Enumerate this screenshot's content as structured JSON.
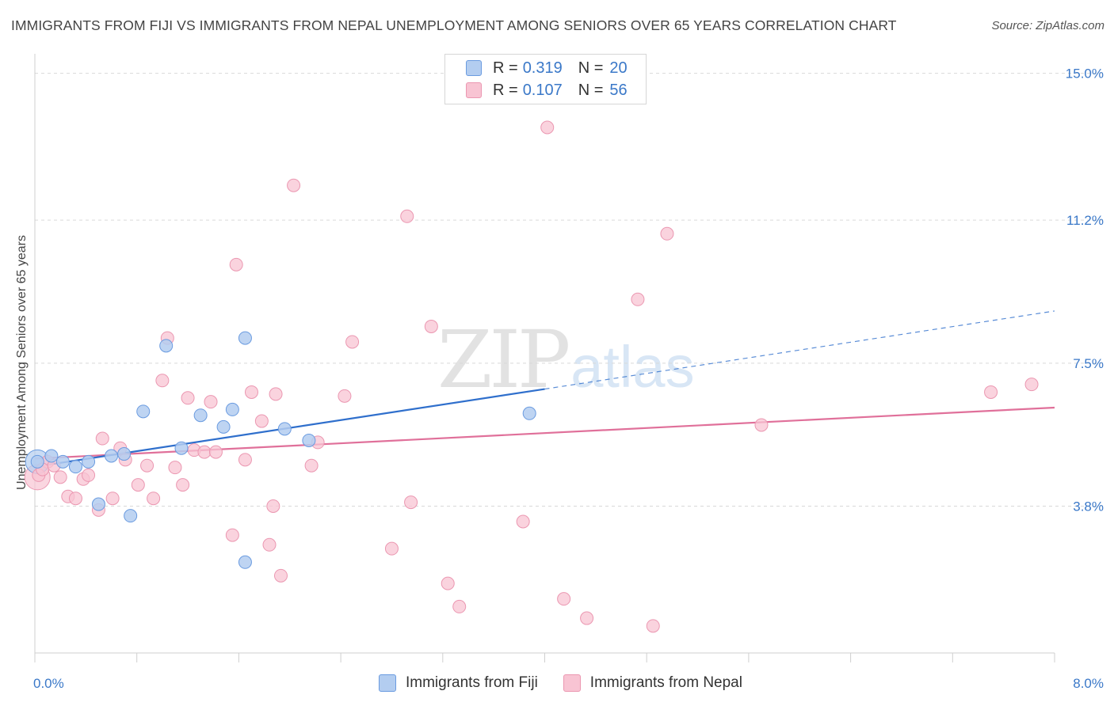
{
  "header": {
    "title": "IMMIGRANTS FROM FIJI VS IMMIGRANTS FROM NEPAL UNEMPLOYMENT AMONG SENIORS OVER 65 YEARS CORRELATION CHART",
    "source": "Source: ZipAtlas.com"
  },
  "watermark": {
    "zip": "ZIP",
    "atlas": "atlas"
  },
  "legend": {
    "rows": [
      {
        "r_label": "R =",
        "r_value": "0.319",
        "n_label": "N =",
        "n_value": "20"
      },
      {
        "r_label": "R =",
        "r_value": "0.107",
        "n_label": "N =",
        "n_value": "56"
      }
    ]
  },
  "bottom_legend": {
    "fiji": "Immigrants from Fiji",
    "nepal": "Immigrants from Nepal"
  },
  "chart_data": {
    "type": "scatter",
    "title": "IMMIGRANTS FROM FIJI VS IMMIGRANTS FROM NEPAL UNEMPLOYMENT AMONG SENIORS OVER 65 YEARS CORRELATION CHART",
    "xlabel": "",
    "ylabel": "Unemployment Among Seniors over 65 years",
    "xlim": [
      0,
      8
    ],
    "ylim": [
      0,
      15.3
    ],
    "x_tick_labels": [
      "0.0%",
      "8.0%"
    ],
    "y_ticks": [
      3.8,
      7.5,
      11.2,
      15.0
    ],
    "y_tick_labels": [
      "3.8%",
      "7.5%",
      "11.2%",
      "15.0%"
    ],
    "grid": true,
    "legend_position": "top-center",
    "colors": {
      "fiji_fill": "#b3cdf0",
      "fiji_stroke": "#6a9be0",
      "fiji_line": "#2f6fcc",
      "nepal_fill": "#f8c4d3",
      "nepal_stroke": "#eb97b1",
      "nepal_line": "#e0709a"
    },
    "series": [
      {
        "name": "Immigrants from Fiji",
        "r": 0.319,
        "n": 20,
        "trend": {
          "x0": 0.0,
          "y0": 4.82,
          "x1": 4.0,
          "y1": 6.83,
          "dashed_to_x": 8.0,
          "dashed_to_y": 8.85
        },
        "points": [
          [
            0.02,
            4.95
          ],
          [
            0.13,
            5.1
          ],
          [
            0.22,
            4.95
          ],
          [
            0.32,
            4.82
          ],
          [
            0.42,
            4.95
          ],
          [
            0.5,
            3.85
          ],
          [
            0.6,
            5.1
          ],
          [
            0.7,
            5.15
          ],
          [
            0.75,
            3.55
          ],
          [
            0.85,
            6.25
          ],
          [
            1.03,
            7.95
          ],
          [
            1.15,
            5.3
          ],
          [
            1.3,
            6.15
          ],
          [
            1.48,
            5.85
          ],
          [
            1.55,
            6.3
          ],
          [
            1.65,
            2.35
          ],
          [
            1.65,
            8.15
          ],
          [
            1.96,
            5.8
          ],
          [
            2.15,
            5.5
          ],
          [
            3.88,
            6.2
          ]
        ]
      },
      {
        "name": "Immigrants from Nepal",
        "r": 0.107,
        "n": 56,
        "trend": {
          "x0": 0.0,
          "y0": 5.03,
          "x1": 8.0,
          "y1": 6.35
        },
        "points": [
          [
            0.03,
            4.6
          ],
          [
            0.1,
            4.95
          ],
          [
            0.2,
            4.55
          ],
          [
            0.26,
            4.05
          ],
          [
            0.32,
            4.0
          ],
          [
            0.38,
            4.5
          ],
          [
            0.42,
            4.6
          ],
          [
            0.5,
            3.7
          ],
          [
            0.53,
            5.55
          ],
          [
            0.61,
            4.0
          ],
          [
            0.67,
            5.3
          ],
          [
            0.71,
            5.0
          ],
          [
            0.81,
            4.35
          ],
          [
            0.88,
            4.85
          ],
          [
            0.93,
            4.0
          ],
          [
            1.0,
            7.05
          ],
          [
            1.04,
            8.15
          ],
          [
            1.1,
            4.8
          ],
          [
            1.16,
            4.35
          ],
          [
            1.2,
            6.6
          ],
          [
            1.25,
            5.25
          ],
          [
            1.33,
            5.2
          ],
          [
            1.38,
            6.5
          ],
          [
            1.42,
            5.2
          ],
          [
            1.55,
            3.05
          ],
          [
            1.58,
            10.05
          ],
          [
            1.65,
            5.0
          ],
          [
            1.7,
            6.75
          ],
          [
            1.78,
            6.0
          ],
          [
            1.84,
            2.8
          ],
          [
            1.87,
            3.8
          ],
          [
            1.89,
            6.7
          ],
          [
            1.93,
            2.0
          ],
          [
            2.03,
            12.1
          ],
          [
            2.17,
            4.85
          ],
          [
            2.22,
            5.45
          ],
          [
            2.43,
            6.65
          ],
          [
            2.49,
            8.05
          ],
          [
            2.8,
            2.7
          ],
          [
            2.92,
            11.3
          ],
          [
            2.95,
            3.9
          ],
          [
            3.11,
            8.45
          ],
          [
            3.24,
            1.8
          ],
          [
            3.33,
            1.2
          ],
          [
            4.02,
            13.6
          ],
          [
            3.83,
            3.4
          ],
          [
            4.15,
            1.4
          ],
          [
            4.33,
            0.9
          ],
          [
            4.73,
            9.15
          ],
          [
            4.85,
            0.7
          ],
          [
            4.96,
            10.85
          ],
          [
            5.7,
            5.9
          ],
          [
            7.5,
            6.75
          ],
          [
            7.82,
            6.95
          ],
          [
            0.06,
            4.75
          ],
          [
            0.15,
            4.85
          ]
        ]
      }
    ]
  }
}
